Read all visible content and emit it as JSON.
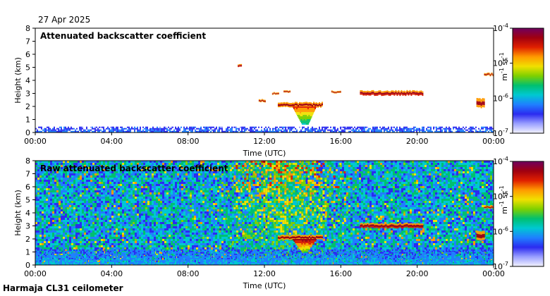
{
  "header": {
    "date": "27 Apr 2025"
  },
  "footer": {
    "source": "Harmaja CL31 ceilometer"
  },
  "colormap": [
    "#f4f4ff",
    "#9aa0ff",
    "#2b2bf0",
    "#1f7fff",
    "#00c8d2",
    "#00c070",
    "#7ed000",
    "#f0e000",
    "#ff9a00",
    "#e02000",
    "#a00010",
    "#700060"
  ],
  "chart_data": [
    {
      "type": "heatmap",
      "title": "Attenuated backscatter coefficient",
      "xlabel": "Time (UTC)",
      "ylabel": "Height (km)",
      "x_ticks": [
        "00:00",
        "04:00",
        "08:00",
        "12:00",
        "16:00",
        "20:00",
        "00:00"
      ],
      "y_ticks": [
        0,
        1,
        2,
        3,
        4,
        5,
        6,
        7,
        8
      ],
      "xlim_hours": [
        0,
        24
      ],
      "ylim": [
        0,
        8
      ],
      "colorbar": {
        "label_base": "m",
        "label_exp1": "-1",
        "label_mid": " sr",
        "label_exp2": "-1",
        "scale": "log",
        "ticks": [
          {
            "base": "10",
            "exp": "-7",
            "value": 1e-07
          },
          {
            "base": "10",
            "exp": "-6",
            "value": 1e-06
          },
          {
            "base": "10",
            "exp": "-5",
            "value": 1e-05
          },
          {
            "base": "10",
            "exp": "-4",
            "value": 0.0001
          }
        ]
      },
      "features": [
        {
          "kind": "boundary_layer",
          "start_h": 0,
          "end_h": 24,
          "top_km": 0.45,
          "level": 0.15
        },
        {
          "kind": "cloud_layer",
          "start_h": 12.7,
          "end_h": 15.0,
          "base_km": 1.95,
          "top_km": 2.3,
          "level": 0.85
        },
        {
          "kind": "precip_plume",
          "center_h": 14.1,
          "top_km": 2.0,
          "bottom_km": 0.6,
          "level": 0.5
        },
        {
          "kind": "cloud_layer",
          "start_h": 11.7,
          "end_h": 12.0,
          "base_km": 2.35,
          "top_km": 2.55,
          "level": 0.85
        },
        {
          "kind": "cloud_layer",
          "start_h": 12.4,
          "end_h": 12.7,
          "base_km": 2.9,
          "top_km": 3.05,
          "level": 0.85
        },
        {
          "kind": "cloud_layer",
          "start_h": 13.0,
          "end_h": 13.3,
          "base_km": 3.1,
          "top_km": 3.2,
          "level": 0.85
        },
        {
          "kind": "cloud_layer",
          "start_h": 15.5,
          "end_h": 16.0,
          "base_km": 3.05,
          "top_km": 3.2,
          "level": 0.85
        },
        {
          "kind": "cloud_layer",
          "start_h": 17.0,
          "end_h": 20.3,
          "base_km": 2.85,
          "top_km": 3.2,
          "level": 0.9
        },
        {
          "kind": "cloud_layer",
          "start_h": 23.1,
          "end_h": 23.5,
          "base_km": 1.9,
          "top_km": 2.6,
          "level": 0.85
        },
        {
          "kind": "cloud_layer",
          "start_h": 23.5,
          "end_h": 24.0,
          "base_km": 4.35,
          "top_km": 4.55,
          "level": 0.85
        },
        {
          "kind": "cloud_layer",
          "start_h": 10.6,
          "end_h": 10.8,
          "base_km": 5.0,
          "top_km": 5.2,
          "level": 0.9
        }
      ]
    },
    {
      "type": "heatmap",
      "title": "Raw attenuated backscatter coefficient",
      "xlabel": "Time (UTC)",
      "ylabel": "Height (km)",
      "x_ticks": [
        "00:00",
        "04:00",
        "08:00",
        "12:00",
        "16:00",
        "20:00",
        "00:00"
      ],
      "y_ticks": [
        0,
        1,
        2,
        3,
        4,
        5,
        6,
        7,
        8
      ],
      "xlim_hours": [
        0,
        24
      ],
      "ylim": [
        0,
        8
      ],
      "colorbar": {
        "label_base": "m",
        "label_exp1": "-1",
        "label_mid": " sr",
        "label_exp2": "-1",
        "scale": "log",
        "ticks": [
          {
            "base": "10",
            "exp": "-7",
            "value": 1e-07
          },
          {
            "base": "10",
            "exp": "-6",
            "value": 1e-06
          },
          {
            "base": "10",
            "exp": "-5",
            "value": 1e-05
          },
          {
            "base": "10",
            "exp": "-4",
            "value": 0.0001
          }
        ]
      },
      "features": [
        {
          "kind": "noise_background",
          "start_h": 0,
          "end_h": 24,
          "level_low": 0.2,
          "level_high": 0.5
        },
        {
          "kind": "high_noise_daytime",
          "start_h": 9.5,
          "end_h": 16.5,
          "level": 0.7
        },
        {
          "kind": "boundary_layer",
          "start_h": 0,
          "end_h": 24,
          "top_km": 1.2,
          "level": 0.2
        },
        {
          "kind": "cloud_layer",
          "start_h": 12.7,
          "end_h": 15.0,
          "base_km": 1.95,
          "top_km": 2.3,
          "level": 0.85
        },
        {
          "kind": "precip_plume",
          "center_h": 14.1,
          "top_km": 2.0,
          "bottom_km": 1.0,
          "level": 0.6
        },
        {
          "kind": "cloud_layer",
          "start_h": 17.0,
          "end_h": 20.3,
          "base_km": 2.85,
          "top_km": 3.2,
          "level": 0.9
        },
        {
          "kind": "cloud_layer",
          "start_h": 23.1,
          "end_h": 23.5,
          "base_km": 1.9,
          "top_km": 2.6,
          "level": 0.85
        },
        {
          "kind": "cloud_layer",
          "start_h": 23.5,
          "end_h": 24.0,
          "base_km": 4.35,
          "top_km": 4.55,
          "level": 0.85
        }
      ]
    }
  ]
}
